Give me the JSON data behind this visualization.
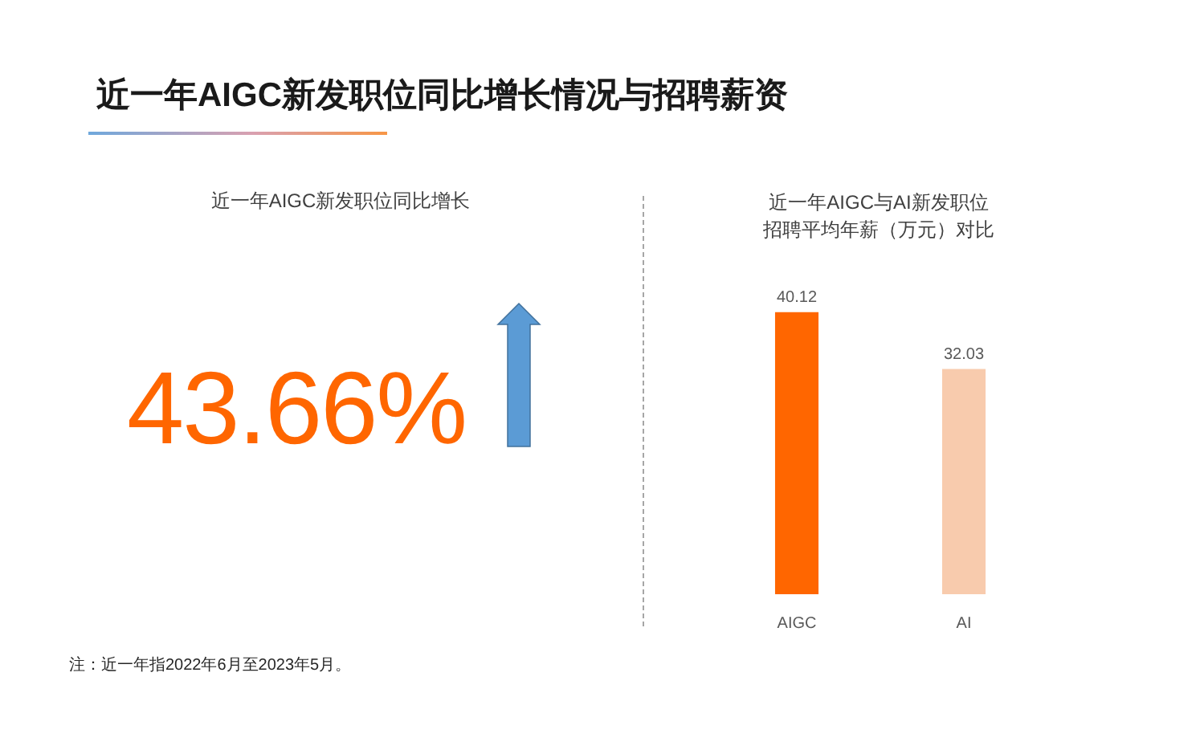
{
  "chart_data": [
    {
      "type": "other",
      "title": "近一年AIGC新发职位同比增长情况与招聘薪资",
      "subtitle": "近一年AIGC新发职位同比增长",
      "annotations": [
        "43.66%",
        "注：近一年指2022年6月至2023年5月。"
      ]
    },
    {
      "type": "bar",
      "title": "近一年AIGC与AI新发职位招聘平均年薪（万元）对比",
      "categories": [
        "AIGC",
        "AI"
      ],
      "values": [
        40.12,
        32.03
      ],
      "colors": [
        "#ff6600",
        "#f8cbad"
      ],
      "data_labels": true,
      "tick_labels": "x"
    }
  ]
}
